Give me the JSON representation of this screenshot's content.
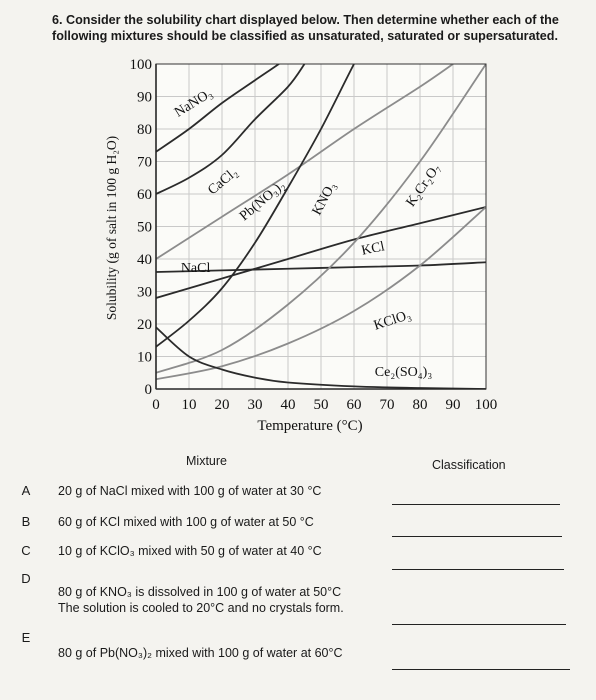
{
  "question": {
    "line1": "6. Consider the solubility chart displayed below. Then determine whether each of the",
    "line2": "following mixtures should be classified as unsaturated, saturated or supersaturated."
  },
  "chart_data": {
    "type": "line",
    "xlabel": "Temperature (°C)",
    "ylabel": "Solubility (g of salt in 100 g H₂O)",
    "xlim": [
      0,
      100
    ],
    "ylim": [
      0,
      100
    ],
    "x_ticks": [
      "0",
      "10",
      "20",
      "30",
      "40",
      "50",
      "60",
      "70",
      "80",
      "90",
      "100"
    ],
    "y_ticks": [
      "0",
      "10",
      "20",
      "30",
      "40",
      "50",
      "60",
      "70",
      "80",
      "90",
      "100"
    ],
    "grid": true,
    "series": [
      {
        "name": "NaNO₃",
        "color": "#2b2b2b",
        "x": [
          0,
          10,
          20,
          30,
          40,
          50
        ],
        "y": [
          73,
          80,
          88,
          95,
          102,
          110
        ]
      },
      {
        "name": "CaCl₂",
        "color": "#2b2b2b",
        "x": [
          0,
          10,
          20,
          30,
          40,
          45
        ],
        "y": [
          60,
          65,
          72,
          83,
          93,
          100
        ]
      },
      {
        "name": "Pb(NO₃)₂",
        "color": "#8c8c8c",
        "x": [
          0,
          20,
          40,
          60,
          80,
          90
        ],
        "y": [
          40,
          53,
          66,
          80,
          93,
          100
        ]
      },
      {
        "name": "KNO₃",
        "color": "#2b2b2b",
        "x": [
          0,
          10,
          20,
          30,
          40,
          50,
          60,
          68
        ],
        "y": [
          13,
          21,
          31,
          45,
          62,
          80,
          100,
          115
        ]
      },
      {
        "name": "KCl",
        "color": "#2b2b2b",
        "x": [
          0,
          20,
          40,
          60,
          80,
          100
        ],
        "y": [
          28,
          34,
          40,
          46,
          51,
          56
        ]
      },
      {
        "name": "NaCl",
        "color": "#2b2b2b",
        "x": [
          0,
          20,
          40,
          60,
          80,
          100
        ],
        "y": [
          36,
          36.5,
          37,
          37.5,
          38,
          39
        ]
      },
      {
        "name": "K₂Cr₂O₇",
        "color": "#8c8c8c",
        "x": [
          0,
          20,
          40,
          60,
          80,
          100
        ],
        "y": [
          5,
          12,
          26,
          45,
          70,
          100
        ]
      },
      {
        "name": "KClO₃",
        "color": "#8c8c8c",
        "x": [
          0,
          20,
          40,
          60,
          80,
          100
        ],
        "y": [
          3,
          7,
          14,
          24,
          38,
          56
        ]
      },
      {
        "name": "Ce₂(SO₄)₃",
        "color": "#2b2b2b",
        "x": [
          0,
          10,
          20,
          30,
          40,
          60,
          80,
          100
        ],
        "y": [
          19,
          10,
          6,
          3.5,
          2,
          0.8,
          0.3,
          0
        ]
      }
    ]
  },
  "table": {
    "col_mixture": "Mixture",
    "col_classification": "Classification",
    "rows": [
      {
        "letter": "A",
        "line1": "20 g of NaCl mixed with 100 g of water at 30 °C",
        "line2": ""
      },
      {
        "letter": "B",
        "line1": "60 g of KCl mixed with 100 g of water at 50 °C",
        "line2": ""
      },
      {
        "letter": "C",
        "line1": "10 g of KClO₃ mixed with 50 g of water at 40 °C",
        "line2": ""
      },
      {
        "letter": "D",
        "line1": "80 g of KNO₃ is dissolved in 100 g of water at 50°C",
        "line2": "The solution is cooled to 20°C and no crystals form."
      },
      {
        "letter": "E",
        "line1": "80 g of Pb(NO₃)₂ mixed with 100 g of water at 60°C",
        "line2": ""
      }
    ]
  }
}
